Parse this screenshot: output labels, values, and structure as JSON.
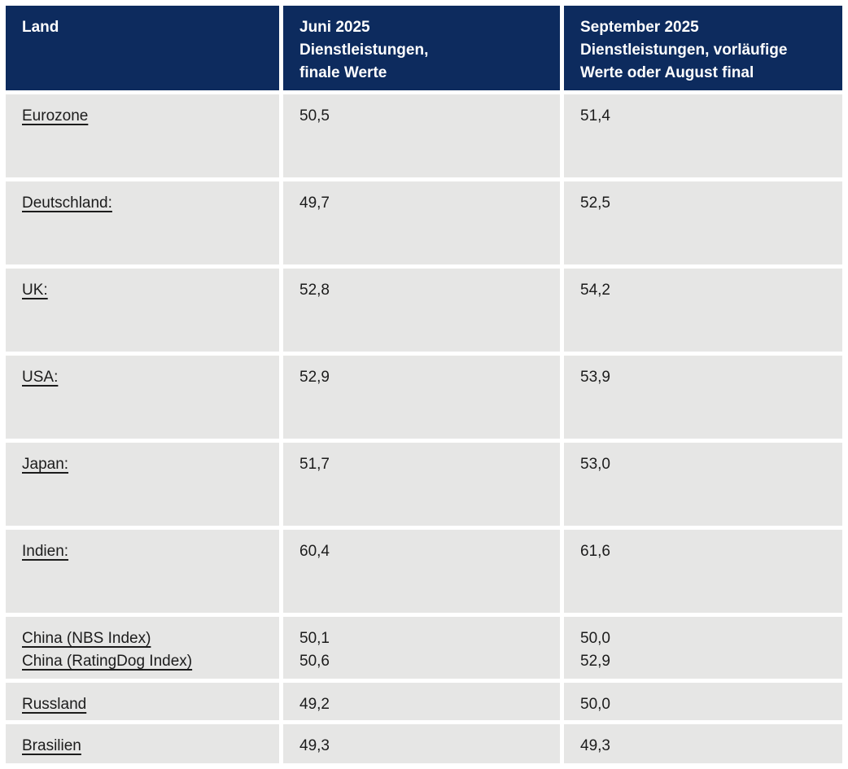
{
  "colors": {
    "header_bg": "#0d2b5e",
    "header_text": "#ffffff",
    "row_bg": "#e6e6e5",
    "body_text": "#1c1c1c",
    "page_bg": "#ffffff"
  },
  "table": {
    "columns": [
      {
        "label": "Land"
      },
      {
        "label": "Juni 2025\nDienstleistungen,\nfinale Werte"
      },
      {
        "label": "September 2025\nDienstleistungen, vorläufige\nWerte oder August final"
      }
    ],
    "rows": [
      {
        "land": "Eurozone",
        "june": "50,5",
        "september": "51,4"
      },
      {
        "land": "Deutschland:",
        "june": "49,7",
        "september": "52,5"
      },
      {
        "land": "UK:",
        "june": "52,8",
        "september": "54,2"
      },
      {
        "land": "USA:",
        "june": "52,9",
        "september": "53,9"
      },
      {
        "land": "Japan:",
        "june": "51,7",
        "september": "53,0"
      },
      {
        "land": "Indien:",
        "june": "60,4",
        "september": "61,6"
      },
      {
        "land": "China (NBS Index)",
        "land2": "China (RatingDog Index)",
        "june": "50,1",
        "june2": "50,6",
        "september": "50,0",
        "september2": "52,9"
      },
      {
        "land": "Russland",
        "june": "49,2",
        "september": "50,0"
      },
      {
        "land": "Brasilien",
        "june": "49,3",
        "september": "49,3"
      }
    ]
  },
  "chart_data": {
    "type": "table",
    "title": "",
    "columns": [
      "Land",
      "Juni 2025 Dienstleistungen, finale Werte",
      "September 2025 Dienstleistungen, vorläufige Werte oder August final"
    ],
    "rows": [
      [
        "Eurozone",
        "50,5",
        "51,4"
      ],
      [
        "Deutschland:",
        "49,7",
        "52,5"
      ],
      [
        "UK:",
        "52,8",
        "54,2"
      ],
      [
        "USA:",
        "52,9",
        "53,9"
      ],
      [
        "Japan:",
        "51,7",
        "53,0"
      ],
      [
        "Indien:",
        "60,4",
        "61,6"
      ],
      [
        "China (NBS Index)",
        "50,1",
        "50,0"
      ],
      [
        "China (RatingDog Index)",
        "50,6",
        "52,9"
      ],
      [
        "Russland",
        "49,2",
        "50,0"
      ],
      [
        "Brasilien",
        "49,3",
        "49,3"
      ]
    ]
  }
}
